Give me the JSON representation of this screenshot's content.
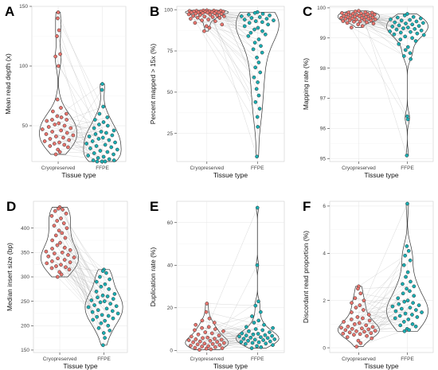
{
  "figure": {
    "colors": {
      "group1": "#e8746d",
      "group2": "#1aaeb3",
      "outline": "#333333",
      "pair_line": "#9a9a9a"
    }
  },
  "chart_data": [
    {
      "label": "A",
      "type": "scatter",
      "xlabel": "Tissue type",
      "ylabel": "Mean read depth (x)",
      "categories": [
        "Cryopreserved",
        "FFPE"
      ],
      "ylim": [
        20,
        150
      ],
      "yticks": [
        50,
        100,
        150
      ],
      "ytick_labels": [
        "50",
        "100",
        "150"
      ],
      "series": [
        {
          "name": "Cryopreserved",
          "values": [
            145,
            140,
            130,
            125,
            110,
            108,
            100,
            72,
            65,
            62,
            60,
            58,
            57,
            55,
            55,
            54,
            52,
            51,
            50,
            49,
            48,
            47,
            46,
            45,
            44,
            43,
            42,
            41,
            40,
            39,
            38,
            37,
            36,
            35,
            34,
            33,
            32,
            30,
            28,
            26
          ]
        },
        {
          "name": "FFPE",
          "values": [
            85,
            80,
            66,
            60,
            57,
            55,
            53,
            51,
            50,
            48,
            46,
            45,
            44,
            43,
            42,
            41,
            40,
            39,
            38,
            37,
            36,
            35,
            34,
            33,
            32,
            31,
            30,
            29,
            28,
            27,
            26,
            25,
            24,
            23,
            22,
            21,
            21,
            20,
            20,
            20
          ]
        }
      ]
    },
    {
      "label": "B",
      "type": "scatter",
      "xlabel": "Tissue type",
      "ylabel": "Percent mapped > 15x (%)",
      "categories": [
        "Cryopreserved",
        "FFPE"
      ],
      "ylim": [
        8,
        102
      ],
      "yticks": [
        25,
        50,
        75,
        100
      ],
      "ytick_labels": [
        "25",
        "50",
        "75",
        "100"
      ],
      "series": [
        {
          "name": "Cryopreserved",
          "values": [
            99.6,
            99.5,
            99.4,
            99.3,
            99.3,
            99.2,
            99.1,
            99,
            99,
            98.9,
            98.8,
            98.7,
            98.6,
            98.5,
            98.4,
            98.3,
            98.2,
            98,
            97.8,
            97.6,
            97.4,
            97.2,
            97,
            96.8,
            96.5,
            96.2,
            96,
            95.8,
            95.5,
            95.2,
            95,
            94.5,
            94,
            93.5,
            93,
            92,
            91,
            90,
            89,
            87
          ]
        },
        {
          "name": "FFPE",
          "values": [
            98.5,
            98,
            97.5,
            97,
            96.5,
            96,
            95.5,
            95,
            94.5,
            94,
            93.5,
            93,
            92.5,
            92,
            91,
            90,
            89,
            88,
            87,
            86,
            85,
            84,
            82,
            80,
            78,
            76,
            74,
            71,
            68,
            65,
            62,
            59,
            56,
            52,
            48,
            44,
            40,
            35,
            29,
            11
          ]
        }
      ]
    },
    {
      "label": "C",
      "type": "scatter",
      "xlabel": "Tissue type",
      "ylabel": "Mapping rate (%)",
      "categories": [
        "Cryopreserved",
        "FFPE"
      ],
      "ylim": [
        94.9,
        100.05
      ],
      "yticks": [
        95,
        96,
        97,
        98,
        99,
        100
      ],
      "ytick_labels": [
        "95",
        "96",
        "97",
        "98",
        "99",
        "100"
      ],
      "series": [
        {
          "name": "Cryopreserved",
          "values": [
            99.9,
            99.88,
            99.86,
            99.85,
            99.84,
            99.83,
            99.82,
            99.81,
            99.8,
            99.79,
            99.78,
            99.77,
            99.76,
            99.75,
            99.74,
            99.73,
            99.72,
            99.71,
            99.7,
            99.69,
            99.68,
            99.67,
            99.66,
            99.65,
            99.64,
            99.63,
            99.62,
            99.61,
            99.6,
            99.59,
            99.58,
            99.56,
            99.55,
            99.54,
            99.52,
            99.5,
            99.48,
            99.45,
            99.4,
            99.35
          ]
        },
        {
          "name": "FFPE",
          "values": [
            99.8,
            99.75,
            99.7,
            99.68,
            99.65,
            99.62,
            99.6,
            99.58,
            99.55,
            99.52,
            99.5,
            99.48,
            99.45,
            99.42,
            99.4,
            99.38,
            99.35,
            99.32,
            99.3,
            99.28,
            99.25,
            99.22,
            99.2,
            99.18,
            99.15,
            99.12,
            99.1,
            99.05,
            99,
            98.95,
            98.9,
            98.8,
            98.7,
            98.6,
            98.5,
            98.4,
            98.3,
            96.4,
            96.3,
            95.1
          ]
        }
      ]
    },
    {
      "label": "D",
      "type": "scatter",
      "xlabel": "Tissue type",
      "ylabel": "Median insert size (bp)",
      "categories": [
        "Cryopreserved",
        "FFPE"
      ],
      "ylim": [
        145,
        455
      ],
      "yticks": [
        150,
        200,
        250,
        300,
        350,
        400
      ],
      "ytick_labels": [
        "150",
        "200",
        "250",
        "300",
        "350",
        "400"
      ],
      "series": [
        {
          "name": "Cryopreserved",
          "values": [
            443,
            440,
            438,
            435,
            430,
            425,
            420,
            415,
            410,
            405,
            400,
            395,
            390,
            385,
            380,
            375,
            370,
            365,
            360,
            358,
            355,
            352,
            350,
            348,
            345,
            342,
            340,
            338,
            335,
            332,
            330,
            328,
            325,
            322,
            320,
            318,
            315,
            310,
            305,
            300
          ]
        },
        {
          "name": "FFPE",
          "values": [
            315,
            312,
            308,
            300,
            295,
            290,
            285,
            280,
            275,
            270,
            265,
            262,
            260,
            258,
            255,
            252,
            250,
            248,
            245,
            242,
            240,
            238,
            235,
            232,
            230,
            228,
            225,
            222,
            220,
            218,
            215,
            212,
            210,
            205,
            200,
            195,
            190,
            185,
            175,
            160
          ]
        }
      ]
    },
    {
      "label": "E",
      "type": "scatter",
      "xlabel": "Tissue type",
      "ylabel": "Duplication rate (%)",
      "categories": [
        "Cryopreserved",
        "FFPE"
      ],
      "ylim": [
        -1,
        70
      ],
      "yticks": [
        0,
        20,
        40,
        60
      ],
      "ytick_labels": [
        "0",
        "20",
        "40",
        "60"
      ],
      "series": [
        {
          "name": "Cryopreserved",
          "values": [
            22,
            18,
            15,
            14,
            13,
            12,
            11,
            10.5,
            10,
            9.5,
            9,
            8.5,
            8,
            7.5,
            7,
            6.5,
            6,
            5.8,
            5.5,
            5.2,
            5,
            4.8,
            4.5,
            4.2,
            4,
            3.8,
            3.5,
            3.2,
            3,
            2.8,
            2.5,
            2.2,
            2,
            1.8,
            1.5,
            1.2,
            1,
            0.8,
            0.5,
            0.3
          ]
        },
        {
          "name": "FFPE",
          "values": [
            67,
            40,
            23,
            21,
            18,
            16,
            14,
            13,
            12,
            11,
            10.5,
            10,
            9.5,
            9,
            8.5,
            8,
            7.8,
            7.5,
            7.2,
            7,
            6.8,
            6.5,
            6.2,
            6,
            5.8,
            5.5,
            5.2,
            5,
            4.8,
            4.5,
            4.2,
            4,
            3.8,
            3.5,
            3.2,
            3,
            2.5,
            2,
            1.5,
            1
          ]
        }
      ]
    },
    {
      "label": "F",
      "type": "scatter",
      "xlabel": "Tissue type",
      "ylabel": "Discordant read proportion (%)",
      "categories": [
        "Cryopreserved",
        "FFPE"
      ],
      "ylim": [
        -0.2,
        6.2
      ],
      "yticks": [
        0,
        2,
        4,
        6
      ],
      "ytick_labels": [
        "0",
        "2",
        "4",
        "6"
      ],
      "series": [
        {
          "name": "Cryopreserved",
          "values": [
            2.6,
            2.5,
            2.3,
            2.1,
            2,
            1.9,
            1.8,
            1.7,
            1.6,
            1.5,
            1.4,
            1.3,
            1.25,
            1.2,
            1.15,
            1.1,
            1.05,
            1,
            0.95,
            0.9,
            0.88,
            0.85,
            0.82,
            0.8,
            0.78,
            0.75,
            0.72,
            0.7,
            0.68,
            0.65,
            0.62,
            0.6,
            0.58,
            0.55,
            0.5,
            0.45,
            0.4,
            0.3,
            0.2,
            0.05
          ]
        },
        {
          "name": "FFPE",
          "values": [
            6.1,
            4.3,
            4.1,
            3.9,
            3.7,
            3.5,
            3.2,
            3,
            2.8,
            2.7,
            2.6,
            2.5,
            2.4,
            2.3,
            2.2,
            2.1,
            2,
            1.95,
            1.9,
            1.85,
            1.8,
            1.75,
            1.7,
            1.65,
            1.6,
            1.55,
            1.5,
            1.45,
            1.4,
            1.35,
            1.3,
            1.25,
            1.2,
            1.1,
            1,
            0.95,
            0.9,
            0.8,
            0.75,
            0.7
          ]
        }
      ]
    }
  ]
}
